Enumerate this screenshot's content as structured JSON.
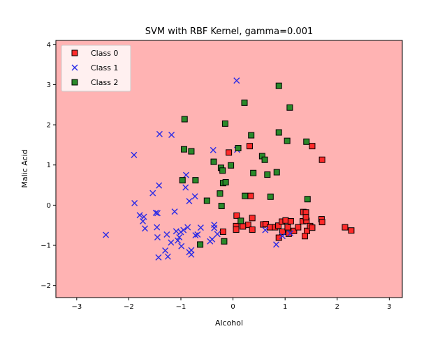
{
  "chart_data": {
    "type": "scatter",
    "title": "SVM with RBF Kernel, gamma=0.001",
    "xlabel": "Alcohol",
    "ylabel": "Malic Acid",
    "xlim": [
      -3.4,
      3.25
    ],
    "ylim": [
      -2.3,
      4.1
    ],
    "x_ticks": [
      -3,
      -2,
      -1,
      0,
      1,
      2,
      3
    ],
    "y_ticks": [
      -2,
      -1,
      0,
      1,
      2,
      3,
      4
    ],
    "x_tick_labels": [
      "−3",
      "−2",
      "−1",
      "0",
      "1",
      "2",
      "3"
    ],
    "y_tick_labels": [
      "−2",
      "−1",
      "0",
      "1",
      "2",
      "3",
      "4"
    ],
    "background_region_color": "#ffb3b3",
    "grid": false,
    "legend_position": "top-left",
    "series": [
      {
        "name": "Class 0",
        "marker": "square",
        "color": "#ff2a2a",
        "edge_color": "#000000",
        "points": [
          [
            -0.08,
            1.31
          ],
          [
            0.32,
            1.47
          ],
          [
            1.52,
            1.47
          ],
          [
            1.71,
            1.13
          ],
          [
            0.34,
            0.23
          ],
          [
            0.07,
            -0.26
          ],
          [
            0.29,
            -0.49
          ],
          [
            0.06,
            -0.52
          ],
          [
            0.06,
            -0.61
          ],
          [
            0.19,
            -0.53
          ],
          [
            0.37,
            -0.61
          ],
          [
            0.37,
            -0.32
          ],
          [
            0.58,
            -0.48
          ],
          [
            0.63,
            -0.47
          ],
          [
            0.71,
            -0.55
          ],
          [
            0.81,
            -0.55
          ],
          [
            0.87,
            -0.51
          ],
          [
            0.94,
            -0.41
          ],
          [
            0.95,
            -0.66
          ],
          [
            0.88,
            -0.81
          ],
          [
            1.01,
            -0.38
          ],
          [
            1.05,
            -0.55
          ],
          [
            1.07,
            -0.71
          ],
          [
            1.11,
            -0.4
          ],
          [
            1.17,
            -0.64
          ],
          [
            1.25,
            -0.55
          ],
          [
            1.34,
            -0.4
          ],
          [
            1.41,
            -0.39
          ],
          [
            1.42,
            -0.64
          ],
          [
            1.35,
            -0.17
          ],
          [
            1.4,
            -0.18
          ],
          [
            1.4,
            -0.3
          ],
          [
            1.38,
            -0.77
          ],
          [
            1.48,
            -0.52
          ],
          [
            1.52,
            -0.56
          ],
          [
            1.7,
            -0.35
          ],
          [
            1.71,
            -0.42
          ],
          [
            2.15,
            -0.55
          ],
          [
            2.27,
            -0.63
          ],
          [
            -0.19,
            -0.66
          ]
        ]
      },
      {
        "name": "Class 1",
        "marker": "x",
        "color": "#2a2ae6",
        "points": [
          [
            0.07,
            3.1
          ],
          [
            -1.41,
            1.77
          ],
          [
            -1.18,
            1.75
          ],
          [
            -1.9,
            1.25
          ],
          [
            -0.38,
            1.37
          ],
          [
            0.08,
            1.38
          ],
          [
            -0.9,
            0.75
          ],
          [
            -0.91,
            0.44
          ],
          [
            -1.42,
            0.49
          ],
          [
            -1.54,
            0.3
          ],
          [
            -0.84,
            0.1
          ],
          [
            -0.73,
            0.22
          ],
          [
            -1.89,
            0.05
          ],
          [
            -1.12,
            -0.16
          ],
          [
            -1.48,
            -0.19
          ],
          [
            -1.45,
            -0.2
          ],
          [
            -1.79,
            -0.25
          ],
          [
            -1.71,
            -0.29
          ],
          [
            -1.73,
            -0.4
          ],
          [
            -1.69,
            -0.58
          ],
          [
            -1.46,
            -0.55
          ],
          [
            -1.45,
            -0.8
          ],
          [
            -1.27,
            -0.73
          ],
          [
            -1.09,
            -0.65
          ],
          [
            -1.03,
            -0.8
          ],
          [
            -1.0,
            -0.67
          ],
          [
            -0.99,
            -1.02
          ],
          [
            -0.95,
            -0.62
          ],
          [
            -0.87,
            -0.55
          ],
          [
            -0.84,
            -1.17
          ],
          [
            -0.8,
            -1.12
          ],
          [
            -0.8,
            -1.23
          ],
          [
            -0.72,
            -0.75
          ],
          [
            -0.68,
            -0.73
          ],
          [
            -0.62,
            -0.56
          ],
          [
            -0.44,
            -0.9
          ],
          [
            -0.4,
            -0.85
          ],
          [
            -0.36,
            -0.57
          ],
          [
            -0.36,
            -0.49
          ],
          [
            -0.3,
            -0.72
          ],
          [
            -1.3,
            -1.13
          ],
          [
            -1.25,
            -1.28
          ],
          [
            -1.43,
            -1.3
          ],
          [
            -1.19,
            -0.93
          ],
          [
            -1.06,
            -0.88
          ],
          [
            -2.44,
            -0.74
          ],
          [
            0.83,
            -0.98
          ],
          [
            0.95,
            -0.77
          ],
          [
            0.62,
            -0.62
          ],
          [
            1.1,
            -0.7
          ]
        ]
      },
      {
        "name": "Class 2",
        "marker": "square",
        "color": "#2a8a2a",
        "edge_color": "#000000",
        "points": [
          [
            0.88,
            2.97
          ],
          [
            0.22,
            2.55
          ],
          [
            -0.93,
            2.14
          ],
          [
            1.09,
            2.43
          ],
          [
            -0.15,
            2.03
          ],
          [
            0.88,
            1.81
          ],
          [
            0.35,
            1.74
          ],
          [
            1.04,
            1.6
          ],
          [
            1.41,
            1.58
          ],
          [
            0.1,
            1.42
          ],
          [
            -0.94,
            1.39
          ],
          [
            -0.8,
            1.34
          ],
          [
            0.56,
            1.22
          ],
          [
            0.61,
            1.13
          ],
          [
            -0.37,
            1.08
          ],
          [
            -0.04,
            0.99
          ],
          [
            -0.23,
            0.93
          ],
          [
            -0.2,
            0.86
          ],
          [
            0.39,
            0.8
          ],
          [
            0.66,
            0.76
          ],
          [
            0.84,
            0.82
          ],
          [
            -0.97,
            0.62
          ],
          [
            -0.72,
            0.62
          ],
          [
            -0.19,
            0.55
          ],
          [
            -0.14,
            0.57
          ],
          [
            0.23,
            0.23
          ],
          [
            0.72,
            0.21
          ],
          [
            1.43,
            0.15
          ],
          [
            -0.25,
            0.29
          ],
          [
            -0.5,
            0.11
          ],
          [
            -0.22,
            -0.02
          ],
          [
            0.15,
            -0.39
          ],
          [
            -0.17,
            -0.9
          ],
          [
            -0.63,
            -0.98
          ]
        ]
      }
    ]
  }
}
